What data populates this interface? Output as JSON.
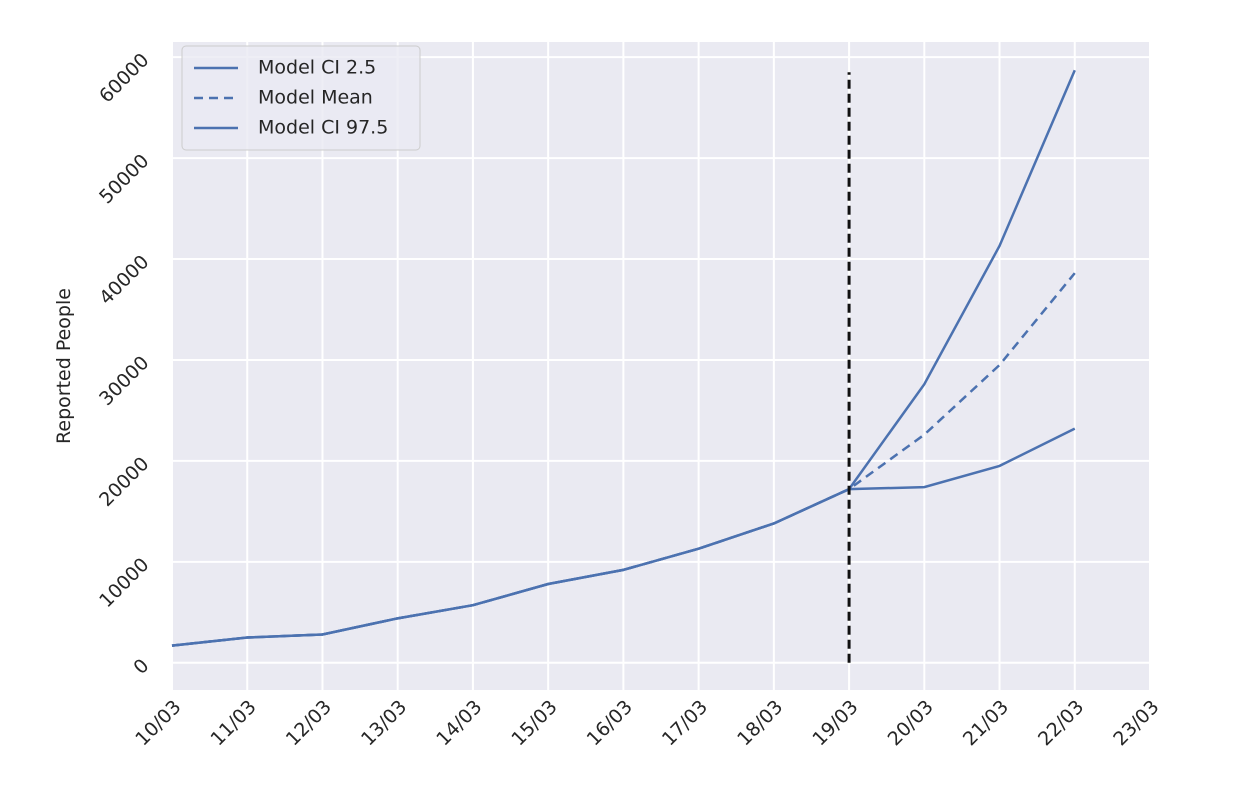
{
  "chart_data": {
    "type": "line",
    "ylabel": "Reported People",
    "categories": [
      "10/03",
      "11/03",
      "12/03",
      "13/03",
      "14/03",
      "15/03",
      "16/03",
      "17/03",
      "18/03",
      "19/03",
      "20/03",
      "21/03",
      "22/03",
      "23/03"
    ],
    "series": [
      {
        "name": "Model CI 2.5",
        "color": "#4c72b0",
        "dash": false,
        "values": [
          1700,
          2500,
          2800,
          4400,
          5700,
          7800,
          9200,
          11300,
          13800,
          17200,
          17400,
          19500,
          23200,
          null
        ]
      },
      {
        "name": "Model Mean",
        "color": "#4c72b0",
        "dash": true,
        "values": [
          1700,
          2500,
          2800,
          4400,
          5700,
          7800,
          9200,
          11300,
          13800,
          17200,
          22600,
          29500,
          38600,
          null
        ]
      },
      {
        "name": "Model CI 97.5",
        "color": "#4c72b0",
        "dash": false,
        "values": [
          1700,
          2500,
          2800,
          4400,
          5700,
          7800,
          9200,
          11300,
          13800,
          17200,
          27600,
          41300,
          58700,
          null
        ]
      }
    ],
    "vline": {
      "at": "19/03",
      "y": [
        0,
        58500
      ],
      "color": "#111111"
    },
    "ylim": [
      -2700,
      61500
    ],
    "yticks": [
      0,
      10000,
      20000,
      30000,
      40000,
      50000,
      60000
    ],
    "grid": true,
    "legend": "upper left"
  }
}
